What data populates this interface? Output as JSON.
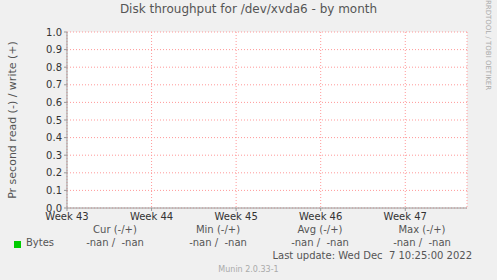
{
  "chart_data": {
    "type": "line",
    "title": "Disk throughput for /dev/xvda6 - by month",
    "y_label": "Pr second read (-) / write (+)",
    "x": [
      43,
      47.73
    ],
    "xlim": [
      43,
      47.73
    ],
    "xticks": [
      {
        "value": 43,
        "label": "Week 43"
      },
      {
        "value": 44,
        "label": "Week 44"
      },
      {
        "value": 45,
        "label": "Week 45"
      },
      {
        "value": 46,
        "label": "Week 46"
      },
      {
        "value": 47,
        "label": "Week 47"
      }
    ],
    "ylim": [
      0,
      1
    ],
    "yticks": [
      {
        "value": 0,
        "label": "0.0"
      },
      0.1,
      0.2,
      0.3,
      0.4,
      0.5,
      0.6,
      0.7,
      0.8,
      0.9,
      {
        "value": 1,
        "label": "1.0"
      }
    ],
    "grid": true,
    "series": [
      {
        "name": "Bytes",
        "color": "#00cc00",
        "values": [
          null,
          null
        ]
      }
    ],
    "stats": {
      "columns": [
        "Cur (-/+)",
        "Min (-/+)",
        "Avg (-/+)",
        "Max (-/+)"
      ],
      "rows": [
        {
          "name": "Bytes",
          "values": [
            "-nan /  -nan",
            "-nan /  -nan",
            "-nan /  -nan",
            "-nan /  -nan"
          ]
        }
      ]
    },
    "annotations": [
      "Last update: Wed Dec  7 10:25:00 2022",
      "Munin 2.0.33-1",
      "RRDTOOL / TOBI OETIKER"
    ]
  }
}
